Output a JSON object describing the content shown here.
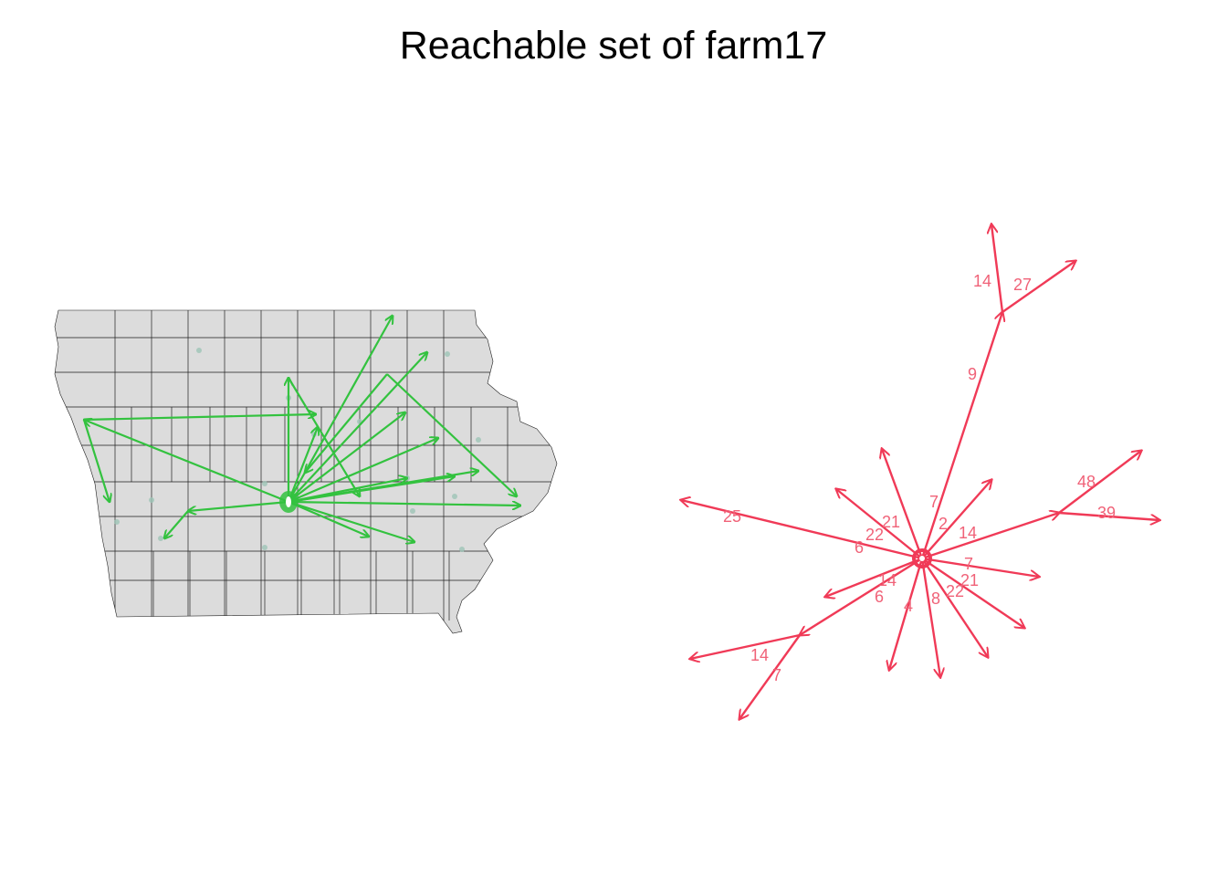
{
  "title": "Reachable set of farm17",
  "colors": {
    "background": "#ffffff",
    "map_fill": "#dcdcdc",
    "map_border": "#1e1e1e",
    "map_edges": "#33c23f",
    "network_edges": "#f03a57",
    "network_labels": "#f06278",
    "farm_dots": "#9ec4b6"
  },
  "map_panel": {
    "region": "Iowa counties",
    "center_farm": "farm17",
    "outgoing_edges": 18
  },
  "network_panel": {
    "center_node": "farm17",
    "edge_labels": [
      "14",
      "27",
      "9",
      "48",
      "39",
      "25",
      "21",
      "22",
      "6",
      "7",
      "2",
      "14",
      "7",
      "21",
      "22",
      "14",
      "6",
      "4",
      "8",
      "14",
      "7"
    ]
  }
}
